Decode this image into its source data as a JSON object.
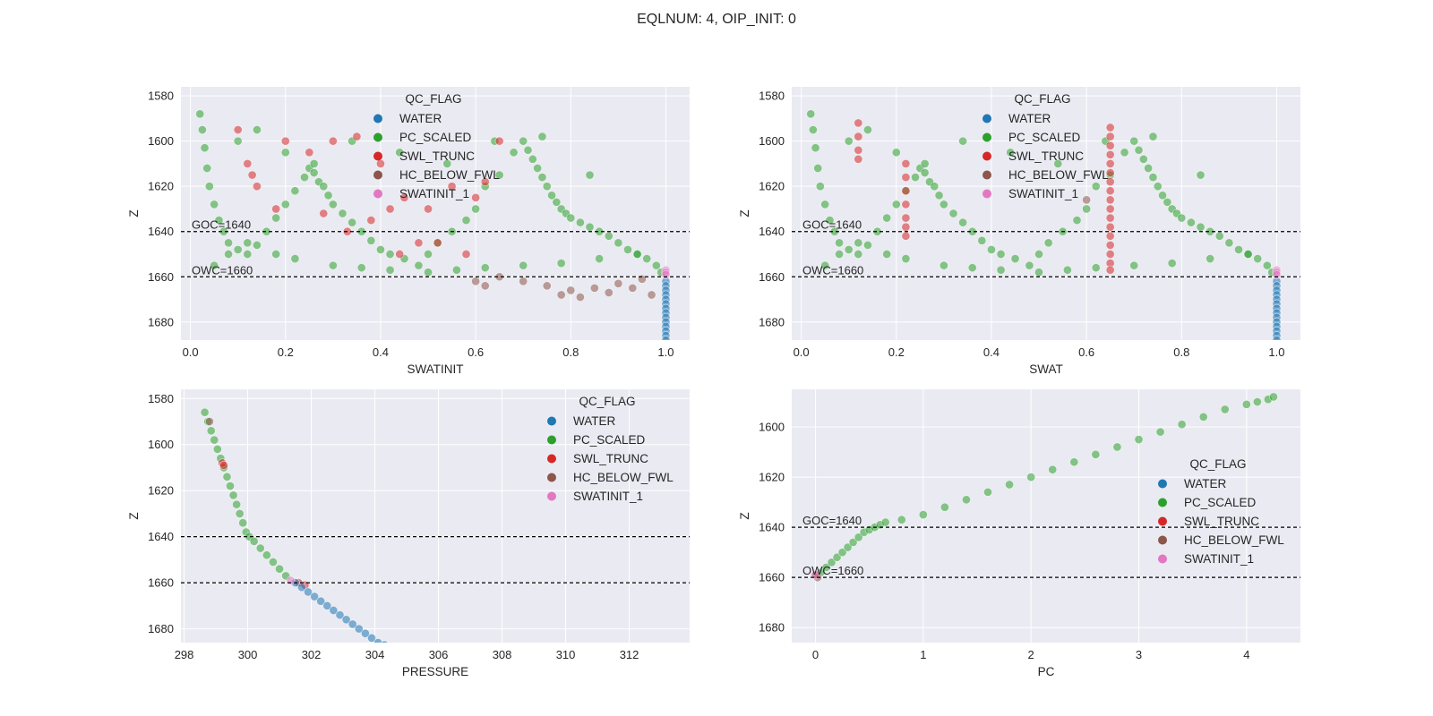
{
  "figure": {
    "title": "EQLNUM: 4, OIP_INIT: 0"
  },
  "legend": {
    "title": "QC_FLAG",
    "entries": [
      {
        "label": "WATER",
        "color": "#1f77b4"
      },
      {
        "label": "PC_SCALED",
        "color": "#2ca02c"
      },
      {
        "label": "SWL_TRUNC",
        "color": "#d62728"
      },
      {
        "label": "HC_BELOW_FWL",
        "color": "#8c564b"
      },
      {
        "label": "SWATINIT_1",
        "color": "#e377c2"
      }
    ]
  },
  "style": {
    "axes_bg": "#eaeaf2",
    "grid_color": "#ffffff",
    "text_color": "#262626"
  },
  "chart_data": [
    {
      "type": "scatter",
      "title": "",
      "xlabel": "SWATINIT",
      "ylabel": "Z",
      "xlim": [
        -0.02,
        1.05
      ],
      "ylim": [
        1688,
        1576
      ],
      "xticks": [
        0.0,
        0.2,
        0.4,
        0.6,
        0.8,
        1.0
      ],
      "xtick_labels": [
        "0.0",
        "0.2",
        "0.4",
        "0.6",
        "0.8",
        "1.0"
      ],
      "yticks": [
        1580,
        1600,
        1620,
        1640,
        1660,
        1680
      ],
      "grid": true,
      "legend_position": "top-center",
      "hlines": [
        {
          "y": 1640,
          "label": "GOC=1640"
        },
        {
          "y": 1660,
          "label": "OWC=1660"
        }
      ],
      "series": [
        {
          "name": "WATER",
          "x": [
            1.0,
            1.0,
            1.0,
            1.0,
            1.0,
            1.0,
            1.0,
            1.0,
            1.0,
            1.0,
            1.0,
            1.0,
            1.0,
            1.0
          ],
          "y": [
            1662,
            1664,
            1666,
            1668,
            1670,
            1672,
            1674,
            1676,
            1678,
            1680,
            1682,
            1684,
            1686,
            1688
          ]
        },
        {
          "name": "PC_SCALED",
          "x": [
            0.02,
            0.025,
            0.03,
            0.035,
            0.04,
            0.05,
            0.06,
            0.07,
            0.08,
            0.1,
            0.12,
            0.14,
            0.16,
            0.18,
            0.2,
            0.22,
            0.24,
            0.25,
            0.26,
            0.27,
            0.28,
            0.29,
            0.3,
            0.32,
            0.34,
            0.36,
            0.38,
            0.4,
            0.42,
            0.45,
            0.48,
            0.5,
            0.52,
            0.55,
            0.58,
            0.6,
            0.62,
            0.65,
            0.68,
            0.7,
            0.71,
            0.72,
            0.73,
            0.74,
            0.75,
            0.76,
            0.77,
            0.78,
            0.79,
            0.8,
            0.82,
            0.84,
            0.86,
            0.88,
            0.9,
            0.92,
            0.94,
            0.96,
            0.98,
            0.99,
            0.05,
            0.08,
            0.12,
            0.18,
            0.22,
            0.3,
            0.36,
            0.42,
            0.5,
            0.56,
            0.62,
            0.7,
            0.78,
            0.86,
            0.94,
            0.1,
            0.14,
            0.2,
            0.26,
            0.34,
            0.44,
            0.54,
            0.64,
            0.74,
            0.84
          ],
          "y": [
            1588,
            1595,
            1603,
            1612,
            1620,
            1628,
            1635,
            1640,
            1645,
            1648,
            1650,
            1646,
            1640,
            1634,
            1628,
            1622,
            1616,
            1612,
            1614,
            1618,
            1620,
            1624,
            1628,
            1632,
            1636,
            1640,
            1644,
            1648,
            1650,
            1652,
            1655,
            1650,
            1645,
            1640,
            1635,
            1630,
            1620,
            1615,
            1605,
            1600,
            1604,
            1608,
            1612,
            1616,
            1620,
            1624,
            1627,
            1630,
            1632,
            1634,
            1636,
            1638,
            1640,
            1642,
            1645,
            1648,
            1650,
            1652,
            1655,
            1658,
            1655,
            1650,
            1645,
            1650,
            1652,
            1655,
            1656,
            1657,
            1658,
            1657,
            1656,
            1655,
            1654,
            1652,
            1650,
            1600,
            1595,
            1605,
            1610,
            1600,
            1605,
            1610,
            1600,
            1598,
            1615
          ]
        },
        {
          "name": "SWL_TRUNC",
          "x": [
            0.12,
            0.13,
            0.14,
            0.1,
            0.2,
            0.25,
            0.3,
            0.35,
            0.4,
            0.45,
            0.5,
            0.55,
            0.6,
            0.65,
            0.33,
            0.48,
            0.58,
            0.38,
            0.42,
            0.52,
            0.28,
            0.18,
            0.62,
            0.44
          ],
          "y": [
            1610,
            1615,
            1620,
            1595,
            1600,
            1605,
            1600,
            1598,
            1610,
            1625,
            1630,
            1620,
            1625,
            1600,
            1640,
            1645,
            1650,
            1635,
            1630,
            1645,
            1632,
            1630,
            1618,
            1650
          ]
        },
        {
          "name": "HC_BELOW_FWL",
          "x": [
            0.6,
            0.62,
            0.65,
            0.7,
            0.75,
            0.78,
            0.8,
            0.82,
            0.85,
            0.88,
            0.9,
            0.93,
            0.95,
            0.97
          ],
          "y": [
            1662,
            1664,
            1660,
            1662,
            1664,
            1668,
            1666,
            1669,
            1665,
            1667,
            1663,
            1665,
            1661,
            1668
          ]
        },
        {
          "name": "SWATINIT_1",
          "x": [
            1.0,
            1.0,
            1.0
          ],
          "y": [
            1657,
            1658,
            1659
          ]
        }
      ]
    },
    {
      "type": "scatter",
      "title": "",
      "xlabel": "SWAT",
      "ylabel": "Z",
      "xlim": [
        -0.02,
        1.05
      ],
      "ylim": [
        1688,
        1576
      ],
      "xticks": [
        0.0,
        0.2,
        0.4,
        0.6,
        0.8,
        1.0
      ],
      "xtick_labels": [
        "0.0",
        "0.2",
        "0.4",
        "0.6",
        "0.8",
        "1.0"
      ],
      "yticks": [
        1580,
        1600,
        1620,
        1640,
        1660,
        1680
      ],
      "grid": true,
      "legend_position": "top-center",
      "hlines": [
        {
          "y": 1640,
          "label": "GOC=1640"
        },
        {
          "y": 1660,
          "label": "OWC=1660"
        }
      ],
      "series": [
        {
          "name": "WATER",
          "x": [
            1.0,
            1.0,
            1.0,
            1.0,
            1.0,
            1.0,
            1.0,
            1.0,
            1.0,
            1.0,
            1.0,
            1.0,
            1.0,
            1.0
          ],
          "y": [
            1662,
            1664,
            1666,
            1668,
            1670,
            1672,
            1674,
            1676,
            1678,
            1680,
            1682,
            1684,
            1686,
            1688
          ]
        },
        {
          "name": "PC_SCALED",
          "x": [
            0.02,
            0.025,
            0.03,
            0.035,
            0.04,
            0.05,
            0.06,
            0.07,
            0.08,
            0.1,
            0.12,
            0.14,
            0.16,
            0.18,
            0.2,
            0.22,
            0.24,
            0.25,
            0.26,
            0.27,
            0.28,
            0.29,
            0.3,
            0.32,
            0.34,
            0.36,
            0.38,
            0.4,
            0.42,
            0.45,
            0.48,
            0.5,
            0.52,
            0.55,
            0.58,
            0.6,
            0.62,
            0.65,
            0.68,
            0.7,
            0.71,
            0.72,
            0.73,
            0.74,
            0.75,
            0.76,
            0.77,
            0.78,
            0.79,
            0.8,
            0.82,
            0.84,
            0.86,
            0.88,
            0.9,
            0.92,
            0.94,
            0.96,
            0.98,
            0.99,
            0.05,
            0.08,
            0.12,
            0.18,
            0.22,
            0.3,
            0.36,
            0.42,
            0.5,
            0.56,
            0.62,
            0.7,
            0.78,
            0.86,
            0.94,
            0.1,
            0.14,
            0.2,
            0.26,
            0.34,
            0.44,
            0.54,
            0.64,
            0.74,
            0.84
          ],
          "y": [
            1588,
            1595,
            1603,
            1612,
            1620,
            1628,
            1635,
            1640,
            1645,
            1648,
            1650,
            1646,
            1640,
            1634,
            1628,
            1622,
            1616,
            1612,
            1614,
            1618,
            1620,
            1624,
            1628,
            1632,
            1636,
            1640,
            1644,
            1648,
            1650,
            1652,
            1655,
            1650,
            1645,
            1640,
            1635,
            1630,
            1620,
            1615,
            1605,
            1600,
            1604,
            1608,
            1612,
            1616,
            1620,
            1624,
            1627,
            1630,
            1632,
            1634,
            1636,
            1638,
            1640,
            1642,
            1645,
            1648,
            1650,
            1652,
            1655,
            1658,
            1655,
            1650,
            1645,
            1650,
            1652,
            1655,
            1656,
            1657,
            1658,
            1657,
            1656,
            1655,
            1654,
            1652,
            1650,
            1600,
            1595,
            1605,
            1610,
            1600,
            1605,
            1610,
            1600,
            1598,
            1615
          ]
        },
        {
          "name": "SWL_TRUNC",
          "x": [
            0.12,
            0.12,
            0.12,
            0.12,
            0.22,
            0.22,
            0.22,
            0.22,
            0.22,
            0.22,
            0.22,
            0.65,
            0.65,
            0.65,
            0.65,
            0.65,
            0.65,
            0.65,
            0.65,
            0.65,
            0.65,
            0.65,
            0.65,
            0.65,
            0.65,
            0.65,
            0.65,
            0.65
          ],
          "y": [
            1592,
            1598,
            1604,
            1608,
            1610,
            1616,
            1622,
            1628,
            1634,
            1638,
            1642,
            1594,
            1598,
            1602,
            1606,
            1610,
            1614,
            1618,
            1622,
            1626,
            1630,
            1634,
            1638,
            1642,
            1646,
            1650,
            1654,
            1657
          ]
        },
        {
          "name": "HC_BELOW_FWL",
          "x": [
            0.6
          ],
          "y": [
            1626
          ]
        },
        {
          "name": "SWATINIT_1",
          "x": [
            1.0,
            1.0,
            1.0
          ],
          "y": [
            1657,
            1658,
            1659
          ]
        }
      ]
    },
    {
      "type": "scatter",
      "title": "",
      "xlabel": "PRESSURE",
      "ylabel": "Z",
      "xlim": [
        297.9,
        313.9
      ],
      "ylim": [
        1686,
        1576
      ],
      "xticks": [
        298,
        300,
        302,
        304,
        306,
        308,
        310,
        312
      ],
      "xtick_labels": [
        "298",
        "300",
        "302",
        "304",
        "306",
        "308",
        "310",
        "312"
      ],
      "yticks": [
        1580,
        1600,
        1620,
        1640,
        1660,
        1680
      ],
      "grid": true,
      "legend_position": "top-right",
      "hlines": [
        {
          "y": 1640,
          "label": ""
        },
        {
          "y": 1660,
          "label": ""
        }
      ],
      "series": [
        {
          "name": "WATER",
          "x": [
            301.5,
            301.7,
            301.9,
            302.1,
            302.3,
            302.5,
            302.7,
            302.9,
            303.1,
            303.3,
            303.5,
            303.7,
            303.9,
            304.1,
            304.3
          ],
          "y": [
            1660,
            1662,
            1664,
            1666,
            1668,
            1670,
            1672,
            1674,
            1676,
            1678,
            1680,
            1682,
            1684,
            1686,
            1687
          ]
        },
        {
          "name": "PC_SCALED",
          "x": [
            298.65,
            298.75,
            298.85,
            298.95,
            299.05,
            299.15,
            299.25,
            299.35,
            299.45,
            299.55,
            299.65,
            299.75,
            299.85,
            299.95,
            300.05,
            300.2,
            300.4,
            300.6,
            300.8,
            301.0,
            301.2
          ],
          "y": [
            1586,
            1590,
            1594,
            1598,
            1602,
            1606,
            1610,
            1614,
            1618,
            1622,
            1626,
            1630,
            1634,
            1638,
            1640,
            1642,
            1645,
            1648,
            1651,
            1654,
            1657
          ]
        },
        {
          "name": "SWL_TRUNC",
          "x": [
            299.2,
            299.25,
            301.6,
            301.8
          ],
          "y": [
            1608,
            1609,
            1660,
            1661
          ]
        },
        {
          "name": "HC_BELOW_FWL",
          "x": [
            298.8
          ],
          "y": [
            1590
          ]
        },
        {
          "name": "SWATINIT_1",
          "x": [
            301.35
          ],
          "y": [
            1659
          ]
        }
      ]
    },
    {
      "type": "scatter",
      "title": "",
      "xlabel": "PC",
      "ylabel": "Z",
      "xlim": [
        -0.22,
        4.5
      ],
      "ylim": [
        1686,
        1585
      ],
      "xticks": [
        0,
        1,
        2,
        3,
        4
      ],
      "xtick_labels": [
        "0",
        "1",
        "2",
        "3",
        "4"
      ],
      "yticks": [
        1600,
        1620,
        1640,
        1660,
        1680
      ],
      "grid": true,
      "legend_position": "center-right",
      "hlines": [
        {
          "y": 1640,
          "label": "GOC=1640"
        },
        {
          "y": 1660,
          "label": "OWC=1660"
        }
      ],
      "series": [
        {
          "name": "WATER",
          "x": [],
          "y": []
        },
        {
          "name": "PC_SCALED",
          "x": [
            0.05,
            0.1,
            0.15,
            0.2,
            0.25,
            0.3,
            0.35,
            0.4,
            0.45,
            0.5,
            0.55,
            0.6,
            0.65,
            0.8,
            1.0,
            1.2,
            1.4,
            1.6,
            1.8,
            2.0,
            2.2,
            2.4,
            2.6,
            2.8,
            3.0,
            3.2,
            3.4,
            3.6,
            3.8,
            4.0,
            4.1,
            4.2,
            4.25
          ],
          "y": [
            1658,
            1656,
            1654,
            1652,
            1650,
            1648,
            1646,
            1644,
            1642,
            1641,
            1640,
            1639,
            1638,
            1637,
            1635,
            1632,
            1629,
            1626,
            1623,
            1620,
            1617,
            1614,
            1611,
            1608,
            1605,
            1602,
            1599,
            1596,
            1593,
            1591,
            1590,
            1589,
            1588
          ]
        },
        {
          "name": "SWL_TRUNC",
          "x": [],
          "y": []
        },
        {
          "name": "HC_BELOW_FWL",
          "x": [
            0.0,
            0.02
          ],
          "y": [
            1659,
            1660
          ]
        },
        {
          "name": "SWATINIT_1",
          "x": [
            0.0
          ],
          "y": [
            1659
          ]
        }
      ]
    }
  ]
}
